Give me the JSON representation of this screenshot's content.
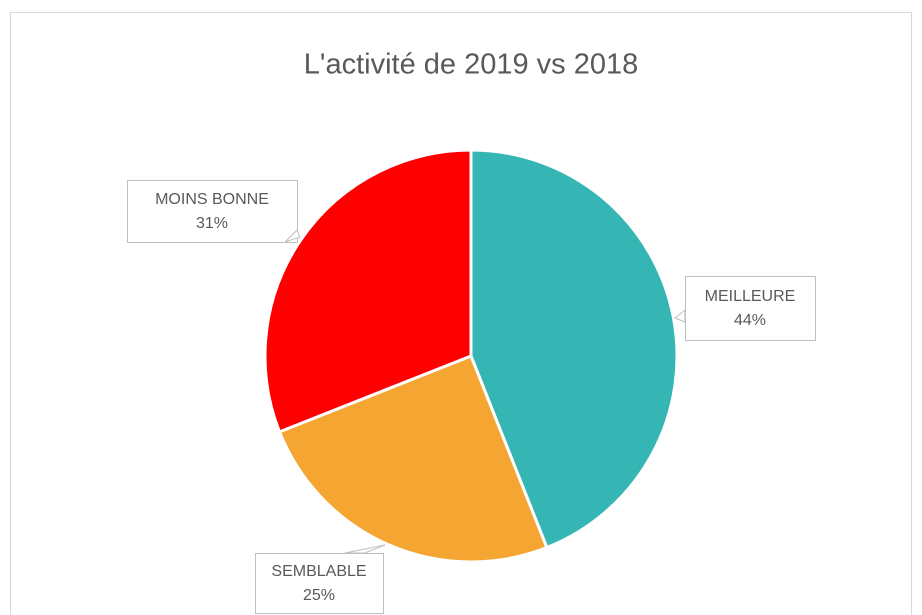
{
  "chart_data": {
    "type": "pie",
    "title": "L'activité de 2019 vs 2018",
    "categories": [
      "MEILLEURE",
      "SEMBLABLE",
      "MOINS BONNE"
    ],
    "values": [
      44,
      25,
      31
    ],
    "value_labels": [
      "44%",
      "25%",
      "31%"
    ],
    "colors": [
      "#36b5b5",
      "#f4a532",
      "#ff0000"
    ]
  }
}
